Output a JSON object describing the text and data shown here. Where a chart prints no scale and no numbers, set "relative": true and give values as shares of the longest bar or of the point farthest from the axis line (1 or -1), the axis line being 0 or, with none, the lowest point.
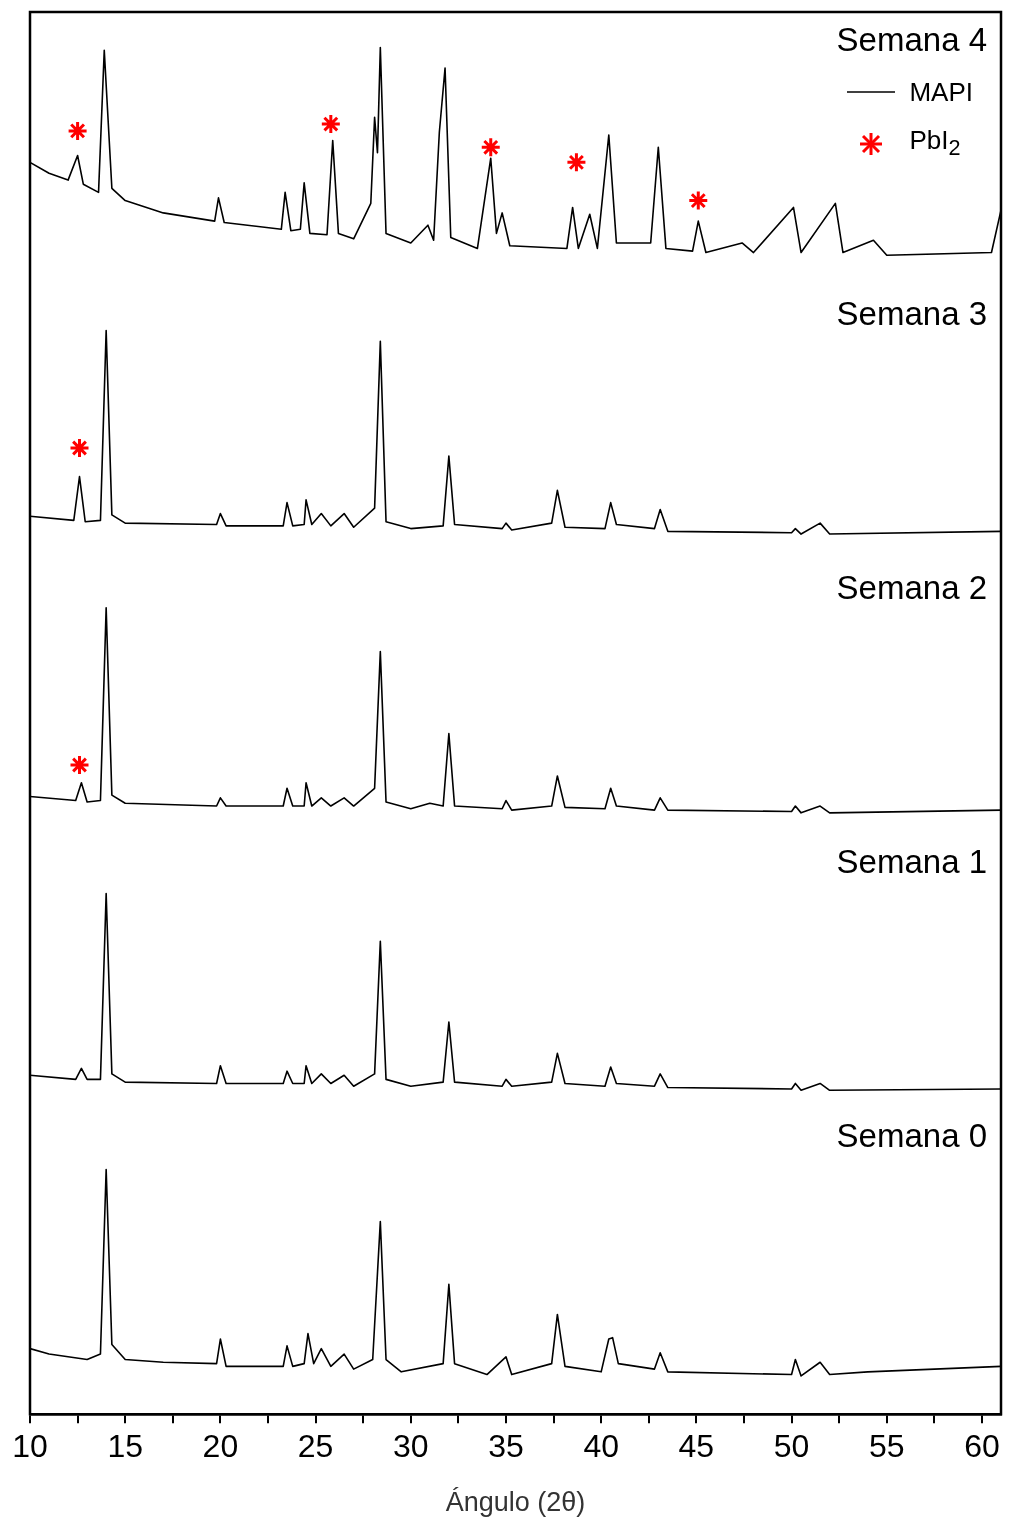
{
  "chart_data": {
    "type": "line",
    "relative": true,
    "xlabel": "Ángulo (2θ)",
    "xlim": [
      10,
      61
    ],
    "xticks": [
      10,
      {
        "value": 12.5,
        "label": null
      },
      15,
      {
        "value": 17.5,
        "label": null
      },
      20,
      {
        "value": 22.5,
        "label": null
      },
      25,
      {
        "value": 27.5,
        "label": null
      },
      30,
      {
        "value": 32.5,
        "label": null
      },
      35,
      {
        "value": 37.5,
        "label": null
      },
      40,
      {
        "value": 42.5,
        "label": null
      },
      45,
      {
        "value": 47.5,
        "label": null
      },
      50,
      {
        "value": 52.5,
        "label": null
      },
      55,
      {
        "value": 57.5,
        "label": null
      },
      60
    ],
    "grid": false,
    "legend": "top right",
    "marker": "none",
    "line_style": "solid",
    "series": [
      {
        "name": "MAPI",
        "color": "#000000",
        "x": [
          10,
          11,
          12,
          13,
          13.7,
          14.0,
          14.3,
          15,
          17,
          19.8,
          20,
          20.3,
          23.3,
          23.5,
          23.8,
          24.4,
          24.6,
          24.9,
          25.3,
          25.8,
          26.5,
          27,
          28,
          28.4,
          28.7,
          29.5,
          31.7,
          32.0,
          32.3,
          34,
          35,
          35.3,
          37.4,
          37.7,
          38.1,
          40,
          40.4,
          40.6,
          40.9,
          42.8,
          43.1,
          43.5,
          50,
          50.2,
          50.5,
          51.5,
          52,
          54,
          61
        ],
        "values": [
          0.048,
          0.044,
          0.042,
          0.04,
          0.044,
          0.179,
          0.051,
          0.04,
          0.038,
          0.037,
          0.055,
          0.035,
          0.035,
          0.05,
          0.035,
          0.037,
          0.059,
          0.037,
          0.048,
          0.035,
          0.044,
          0.033,
          0.04,
          0.141,
          0.04,
          0.031,
          0.037,
          0.095,
          0.037,
          0.029,
          0.042,
          0.029,
          0.037,
          0.073,
          0.035,
          0.031,
          0.055,
          0.056,
          0.037,
          0.033,
          0.045,
          0.031,
          0.029,
          0.04,
          0.028,
          0.038,
          0.029,
          0.031,
          0.035
        ]
      },
      {
        "color": "#000000",
        "x": [
          10,
          12.4,
          12.7,
          13,
          13.7,
          14.0,
          14.3,
          15,
          19.8,
          20,
          20.3,
          23.3,
          23.5,
          23.8,
          24.4,
          24.5,
          24.8,
          25.3,
          25.8,
          26.5,
          27,
          28.1,
          28.4,
          28.7,
          30,
          31.7,
          32.0,
          32.3,
          34.8,
          35,
          35.3,
          37.4,
          37.7,
          38.1,
          40.2,
          40.5,
          40.8,
          42.8,
          43.1,
          43.5,
          50,
          50.2,
          50.5,
          51.5,
          52,
          61
        ],
        "values": [
          0.248,
          0.245,
          0.253,
          0.245,
          0.245,
          0.381,
          0.249,
          0.243,
          0.242,
          0.255,
          0.242,
          0.242,
          0.251,
          0.242,
          0.242,
          0.255,
          0.242,
          0.249,
          0.242,
          0.248,
          0.24,
          0.249,
          0.346,
          0.245,
          0.24,
          0.243,
          0.287,
          0.243,
          0.24,
          0.245,
          0.24,
          0.243,
          0.264,
          0.242,
          0.24,
          0.254,
          0.242,
          0.24,
          0.249,
          0.239,
          0.238,
          0.242,
          0.237,
          0.242,
          0.237,
          0.238
        ]
      },
      {
        "color": "#000000",
        "x": [
          10,
          12.4,
          12.7,
          13,
          13.7,
          14.0,
          14.3,
          15,
          19.8,
          20,
          20.3,
          23.3,
          23.5,
          23.8,
          24.4,
          24.5,
          24.8,
          25.3,
          25.8,
          26.5,
          27,
          28.1,
          28.4,
          28.7,
          30,
          31,
          31.7,
          32.0,
          32.3,
          34.8,
          35,
          35.3,
          37.4,
          37.7,
          38.1,
          40.2,
          40.5,
          40.8,
          42.8,
          43.1,
          43.5,
          50,
          50.2,
          50.5,
          51.5,
          52,
          61
        ],
        "values": [
          0.452,
          0.449,
          0.462,
          0.448,
          0.449,
          0.59,
          0.453,
          0.447,
          0.445,
          0.451,
          0.445,
          0.445,
          0.458,
          0.445,
          0.445,
          0.462,
          0.445,
          0.451,
          0.445,
          0.451,
          0.445,
          0.458,
          0.558,
          0.448,
          0.443,
          0.447,
          0.445,
          0.498,
          0.445,
          0.443,
          0.449,
          0.442,
          0.445,
          0.467,
          0.444,
          0.443,
          0.458,
          0.445,
          0.442,
          0.451,
          0.442,
          0.441,
          0.445,
          0.44,
          0.445,
          0.44,
          0.442
        ]
      },
      {
        "color": "#000000",
        "x": [
          10,
          12.3,
          12.6,
          12.9,
          13.7,
          14.0,
          14.3,
          15,
          19.8,
          20,
          20.3,
          23.3,
          23.5,
          23.8,
          24.4,
          24.5,
          24.8,
          25.3,
          25.8,
          26.5,
          27,
          28.1,
          28.4,
          28.7,
          30,
          31.7,
          32.0,
          32.3,
          34.8,
          35,
          35.3,
          37.4,
          37.7,
          38.1,
          40.2,
          40.5,
          40.8,
          42.8,
          43.1,
          43.5,
          50,
          50.2,
          50.5,
          51.5,
          52,
          61
        ],
        "values": [
          0.657,
          0.654,
          0.686,
          0.653,
          0.654,
          0.793,
          0.658,
          0.652,
          0.651,
          0.659,
          0.65,
          0.65,
          0.667,
          0.65,
          0.651,
          0.669,
          0.651,
          0.659,
          0.65,
          0.659,
          0.649,
          0.663,
          0.785,
          0.653,
          0.648,
          0.65,
          0.701,
          0.651,
          0.648,
          0.652,
          0.647,
          0.652,
          0.676,
          0.649,
          0.648,
          0.667,
          0.651,
          0.648,
          0.662,
          0.646,
          0.645,
          0.648,
          0.644,
          0.652,
          0.644,
          0.646
        ]
      },
      {
        "color": "#000000",
        "x": [
          10,
          11,
          12,
          12.5,
          12.8,
          13.6,
          13.9,
          14.3,
          15,
          17,
          19.7,
          19.9,
          20.2,
          23.2,
          23.4,
          23.7,
          24.2,
          24.4,
          24.7,
          25.6,
          25.9,
          26.2,
          27,
          27.9,
          28.1,
          28.25,
          28.4,
          28.7,
          30,
          30.9,
          31.2,
          31.5,
          31.8,
          32.1,
          33.5,
          34.2,
          34.5,
          34.8,
          35.2,
          38.2,
          38.5,
          38.8,
          39.4,
          39.8,
          40.4,
          40.8,
          42.6,
          43.0,
          43.4,
          44.8,
          45.1,
          45.5,
          47.4,
          48,
          50.1,
          50.5,
          52.3,
          52.7,
          54.3,
          55,
          60.5,
          61
        ],
        "values": [
          0.916,
          0.908,
          0.903,
          0.921,
          0.9,
          0.894,
          0.998,
          0.897,
          0.888,
          0.879,
          0.873,
          0.89,
          0.872,
          0.867,
          0.894,
          0.866,
          0.867,
          0.901,
          0.864,
          0.863,
          0.932,
          0.864,
          0.86,
          0.886,
          0.949,
          0.923,
          1,
          0.864,
          0.857,
          0.87,
          0.859,
          0.938,
          0.985,
          0.861,
          0.853,
          0.919,
          0.864,
          0.879,
          0.855,
          0.853,
          0.883,
          0.853,
          0.878,
          0.853,
          0.936,
          0.857,
          0.857,
          0.927,
          0.853,
          0.851,
          0.873,
          0.85,
          0.857,
          0.85,
          0.883,
          0.85,
          0.886,
          0.85,
          0.859,
          0.848,
          0.85,
          0.881
        ]
      },
      {
        "name": "PbI$_{2}$",
        "type": "scatter",
        "marker": "cross",
        "color": "#ff0000",
        "x": [
          12.5,
          25.8,
          34.2,
          38.7,
          45.1,
          12.6,
          12.6
        ],
        "values": [
          0.939,
          0.944,
          0.927,
          0.916,
          0.888,
          0.707,
          0.475
        ]
      }
    ],
    "annotations": [
      "Semana 4",
      "Semana 3",
      "Semana 2",
      "Semana 1",
      "Semana 0"
    ]
  }
}
